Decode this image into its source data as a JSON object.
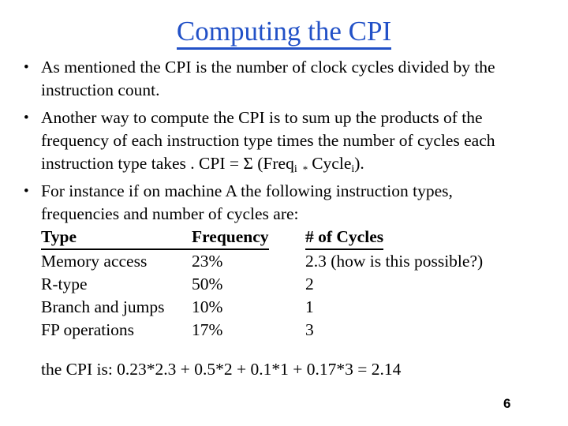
{
  "colors": {
    "background": "#ffffff",
    "title": "#2251c7",
    "text": "#000000"
  },
  "slide": {
    "title": "Computing the CPI",
    "bullet_char": "•",
    "bullets": [
      {
        "lines": [
          "As mentioned the CPI is the number of clock cycles divided by the",
          "instruction count."
        ]
      },
      {
        "lines": [
          "Another way to compute the CPI is to sum up the products of the",
          "frequency of each instruction type times the number of cycles each"
        ],
        "formula_line": {
          "prefix": "instruction type takes . CPI = Σ (Freq",
          "sub_i1": "i",
          "star": "*",
          "cycle_word": "Cycle",
          "sub_i2": "i",
          "suffix": ")."
        }
      },
      {
        "lines": [
          "For instance if on machine A the following instruction types,",
          "frequencies and number of cycles are:"
        ]
      }
    ],
    "table": {
      "headers": {
        "type": "Type",
        "frequency": "Frequency",
        "cycles": "# of Cycles"
      },
      "rows": [
        {
          "type": "Memory access",
          "frequency": "23%",
          "cycles": "2.3 (how is this possible?)"
        },
        {
          "type": "R-type",
          "frequency": "50%",
          "cycles": "2"
        },
        {
          "type": "Branch and jumps",
          "frequency": "10%",
          "cycles": "1"
        },
        {
          "type": "FP operations",
          "frequency": "17%",
          "cycles": "3"
        }
      ]
    },
    "summary": "the CPI is: 0.23*2.3 + 0.5*2 + 0.1*1 + 0.17*3 = 2.14",
    "page_number": "6"
  }
}
